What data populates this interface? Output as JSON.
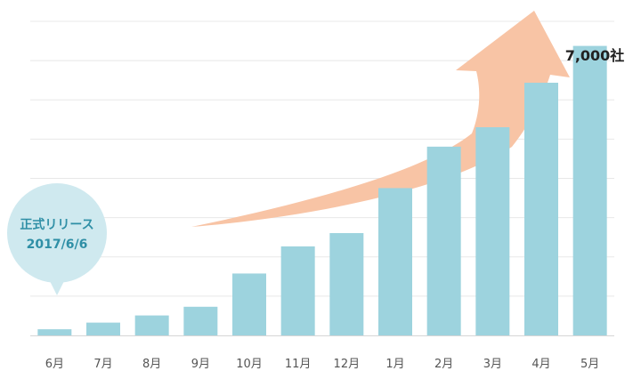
{
  "chart_data": {
    "type": "bar",
    "categories": [
      "6月",
      "7月",
      "8月",
      "9月",
      "10月",
      "11月",
      "12月",
      "1月",
      "2月",
      "3月",
      "4月",
      "5月"
    ],
    "values": [
      120,
      250,
      390,
      560,
      1210,
      1740,
      2000,
      2880,
      3690,
      4070,
      4940,
      5660
    ],
    "ylim": [
      0,
      6140
    ],
    "grid": true,
    "bar_color": "#9dd3de",
    "arrow_color": "#f8c4a5",
    "annotations": {
      "end_label": "7,000社",
      "release_bubble": {
        "line1": "正式リリース",
        "line2": "2017/6/6",
        "color": "#cfe9ef",
        "text_color": "#2f8fa6"
      }
    }
  }
}
